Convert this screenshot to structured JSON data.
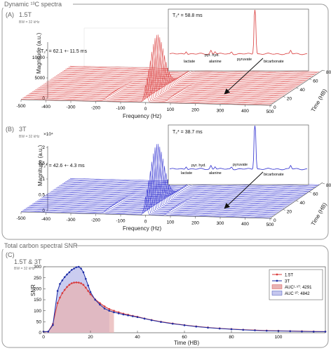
{
  "sections": {
    "top": {
      "title": "Dynamic ¹³C spectra"
    },
    "bottom": {
      "title": "Total carbon spectral SNR"
    }
  },
  "panels": {
    "A": {
      "label": "(A)",
      "field": "1.5T",
      "bw": "BW = 32 kHz",
      "t2_text": "T₂* = 62.1 +- 11.5 ms",
      "inset_t2": "T₂* = 58.8 ms",
      "color": "#d93a3a"
    },
    "B": {
      "label": "(B)",
      "field": "3T",
      "bw": "BW = 32 kHz",
      "t2_text": "T₂* = 42.6 +- 4.3 ms",
      "inset_t2": "T₂* = 38.7 ms",
      "color": "#2a2acf",
      "y_multiplier": "×10⁴"
    },
    "C": {
      "label": "(C)",
      "field": "1.5T & 3T",
      "bw": "BW = 32 kHz"
    }
  },
  "inset_peaks": [
    "lactate",
    "pyr. hyd.",
    "alanine",
    "pyruvate",
    "bicarbonate"
  ],
  "axes": {
    "magnitude_label": "Magnitude (a.u.)",
    "frequency_label": "Frequency (Hz)",
    "time_label": "Time (HB)",
    "snr_label": "SNR"
  },
  "chart_data": [
    {
      "type": "area",
      "title": "",
      "xlabel": "Frequency (Hz)",
      "ylabel": "Magnitude (a.u.)",
      "zlabel": "Time (HB)",
      "x_ticks": [
        -500,
        -400,
        -300,
        -200,
        -100,
        0,
        100,
        200,
        300,
        400,
        500
      ],
      "y_ticks": [
        0,
        5000,
        10000
      ],
      "z_ticks": [
        0,
        20,
        40,
        60,
        80
      ],
      "peak_magnitude": 14500,
      "peak_frequency_hz": 0
    },
    {
      "type": "area",
      "title": "",
      "xlabel": "Frequency (Hz)",
      "ylabel": "Magnitude (a.u.)",
      "zlabel": "Time (HB)",
      "y_multiplier": "×10⁴",
      "x_ticks": [
        -500,
        -400,
        -300,
        -200,
        -100,
        0,
        100,
        200,
        300,
        400,
        500
      ],
      "y_ticks": [
        0,
        0.5,
        1,
        1.5,
        2
      ],
      "z_ticks": [
        0,
        20,
        40,
        60,
        80
      ],
      "peak_magnitude": 20500,
      "peak_frequency_hz": 0
    },
    {
      "type": "line",
      "title": "",
      "xlabel": "Time (HB)",
      "ylabel": "SNR",
      "xlim": [
        0,
        120
      ],
      "ylim": [
        0,
        300
      ],
      "x_ticks": [
        0,
        20,
        40,
        60,
        80,
        100
      ],
      "y_ticks": [
        0,
        50,
        100,
        150,
        200,
        250,
        300
      ],
      "legend_position": "top-right",
      "x": [
        0,
        2,
        4,
        6,
        7,
        8,
        9,
        10,
        11,
        12,
        13,
        14,
        15,
        16,
        17,
        18,
        19,
        20,
        22,
        24,
        26,
        28,
        30,
        32,
        34,
        36,
        38,
        40,
        43,
        46,
        50,
        55,
        60,
        65,
        70,
        75,
        80,
        85,
        90,
        95,
        100,
        105,
        110,
        115,
        120
      ],
      "series": [
        {
          "name": "1.5T",
          "color": "#d93a3a",
          "values": [
            5,
            5,
            40,
            135,
            160,
            180,
            195,
            208,
            218,
            225,
            228,
            229,
            228,
            225,
            218,
            205,
            190,
            175,
            152,
            135,
            120,
            108,
            100,
            93,
            87,
            82,
            77,
            73,
            65,
            58,
            50,
            42,
            35,
            29,
            24,
            20,
            17,
            14,
            12,
            10,
            9,
            8,
            7,
            6,
            5
          ]
        },
        {
          "name": "3T",
          "color": "#1e2ea6",
          "values": [
            5,
            5,
            35,
            190,
            222,
            238,
            253,
            265,
            275,
            286,
            292,
            298,
            300,
            292,
            275,
            245,
            215,
            185,
            150,
            128,
            110,
            100,
            93,
            88,
            83,
            79,
            75,
            71,
            64,
            57,
            49,
            41,
            34,
            28,
            23,
            19,
            16,
            13,
            11,
            9,
            8,
            7,
            6,
            5,
            5
          ]
        }
      ],
      "legend_entries": [
        "1.5T",
        "3T",
        "AUC¹·⁵ᵀ: 4291",
        "AUC ³ᵀ: 4842"
      ],
      "auc": [
        {
          "name": "AUC 1.5T",
          "value": 4291,
          "x_end": 30
        },
        {
          "name": "AUC 3T",
          "value": 4842,
          "x_end": 28
        }
      ]
    }
  ]
}
